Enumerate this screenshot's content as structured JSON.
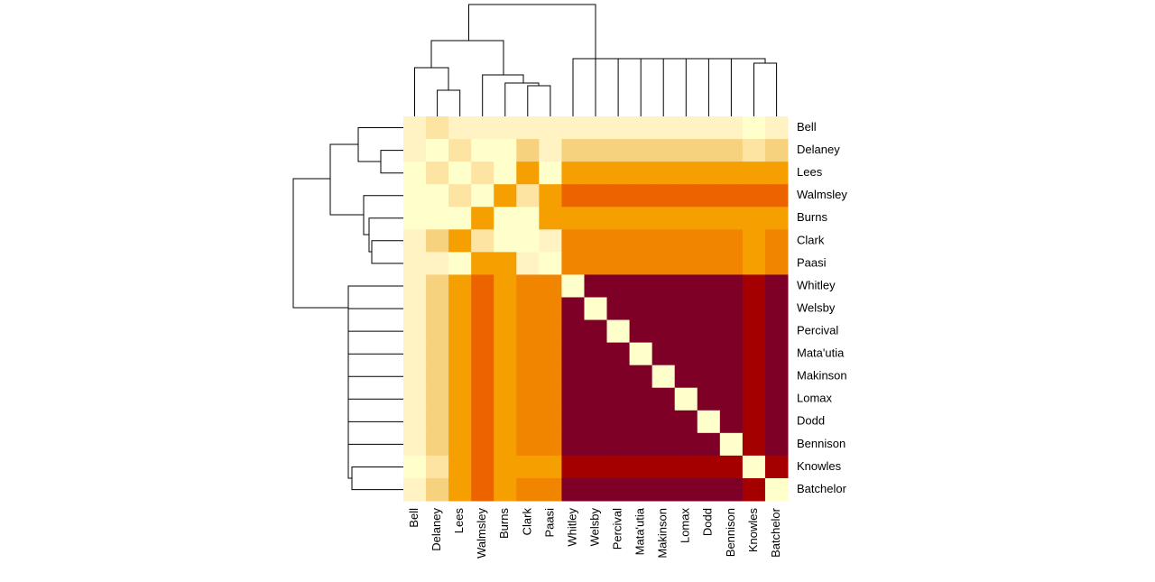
{
  "chart_data": {
    "type": "heatmap",
    "labels": [
      "Bell",
      "Delaney",
      "Lees",
      "Walmsley",
      "Burns",
      "Clark",
      "Paasi",
      "Whitley",
      "Welsby",
      "Percival",
      "Mata'utia",
      "Makinson",
      "Lomax",
      "Dodd",
      "Bennison",
      "Knowles",
      "Batchelor"
    ],
    "colors": [
      "#FFFFCC",
      "#FFF3C4",
      "#FDE4A2",
      "#F7D27E",
      "#F5A000",
      "#F28500",
      "#EC6400",
      "#A50000",
      "#7F0027"
    ],
    "values": [
      [
        1,
        2,
        1,
        1,
        1,
        1,
        1,
        1,
        1,
        1,
        1,
        1,
        1,
        1,
        1,
        0,
        1
      ],
      [
        1,
        0,
        2,
        0,
        0,
        3,
        1,
        3,
        3,
        3,
        3,
        3,
        3,
        3,
        3,
        2,
        3
      ],
      [
        0,
        2,
        0,
        2,
        0,
        4,
        0,
        4,
        4,
        4,
        4,
        4,
        4,
        4,
        4,
        4,
        4
      ],
      [
        0,
        0,
        2,
        0,
        4,
        2,
        4,
        6,
        6,
        6,
        6,
        6,
        6,
        6,
        6,
        6,
        6
      ],
      [
        0,
        0,
        0,
        4,
        0,
        0,
        4,
        4,
        4,
        4,
        4,
        4,
        4,
        4,
        4,
        4,
        4
      ],
      [
        1,
        3,
        4,
        2,
        0,
        0,
        1,
        5,
        5,
        5,
        5,
        5,
        5,
        5,
        5,
        4,
        5
      ],
      [
        1,
        1,
        0,
        4,
        4,
        1,
        0,
        5,
        5,
        5,
        5,
        5,
        5,
        5,
        5,
        4,
        5
      ],
      [
        1,
        3,
        4,
        6,
        4,
        5,
        5,
        0,
        8,
        8,
        8,
        8,
        8,
        8,
        8,
        7,
        8
      ],
      [
        1,
        3,
        4,
        6,
        4,
        5,
        5,
        8,
        0,
        8,
        8,
        8,
        8,
        8,
        8,
        7,
        8
      ],
      [
        1,
        3,
        4,
        6,
        4,
        5,
        5,
        8,
        8,
        0,
        8,
        8,
        8,
        8,
        8,
        7,
        8
      ],
      [
        1,
        3,
        4,
        6,
        4,
        5,
        5,
        8,
        8,
        8,
        0,
        8,
        8,
        8,
        8,
        7,
        8
      ],
      [
        1,
        3,
        4,
        6,
        4,
        5,
        5,
        8,
        8,
        8,
        8,
        0,
        8,
        8,
        8,
        7,
        8
      ],
      [
        1,
        3,
        4,
        6,
        4,
        5,
        5,
        8,
        8,
        8,
        8,
        8,
        0,
        8,
        8,
        7,
        8
      ],
      [
        1,
        3,
        4,
        6,
        4,
        5,
        5,
        8,
        8,
        8,
        8,
        8,
        8,
        0,
        8,
        7,
        8
      ],
      [
        1,
        3,
        4,
        6,
        4,
        5,
        5,
        8,
        8,
        8,
        8,
        8,
        8,
        8,
        0,
        7,
        8
      ],
      [
        0,
        2,
        4,
        6,
        4,
        4,
        4,
        7,
        7,
        7,
        7,
        7,
        7,
        7,
        7,
        0,
        7
      ],
      [
        1,
        3,
        4,
        6,
        4,
        5,
        5,
        8,
        8,
        8,
        8,
        8,
        8,
        8,
        8,
        7,
        0
      ]
    ]
  }
}
